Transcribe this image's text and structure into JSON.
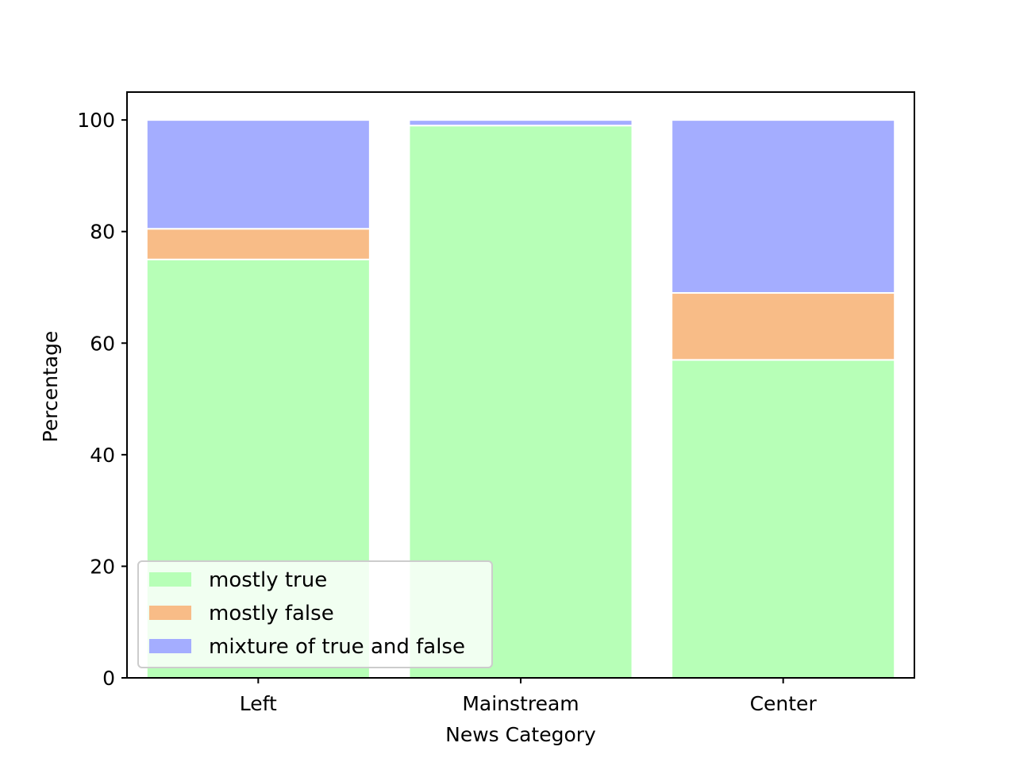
{
  "chart_data": {
    "type": "bar",
    "stacked": true,
    "title": "",
    "xlabel": "News Category",
    "ylabel": "Percentage",
    "categories": [
      "Left",
      "Mainstream",
      "Center"
    ],
    "series": [
      {
        "name": "mostly true",
        "color": "#b7ffb7",
        "values": [
          75,
          99,
          57
        ]
      },
      {
        "name": "mostly false",
        "color": "#f8bc87",
        "values": [
          5.5,
          0,
          12
        ]
      },
      {
        "name": "mixture of true and false",
        "color": "#a4adff",
        "values": [
          19.5,
          1,
          31
        ]
      }
    ],
    "ylim": [
      0,
      105
    ],
    "yticks": [
      0,
      20,
      40,
      60,
      80,
      100
    ],
    "grid": false,
    "legend_position": "lower left"
  }
}
